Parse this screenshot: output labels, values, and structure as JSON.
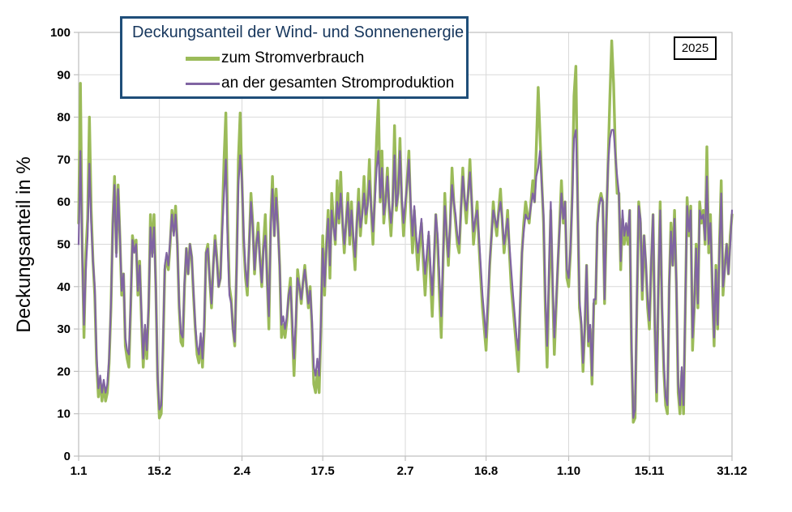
{
  "year_badge": "2025",
  "legend": {
    "title": "Deckungsanteil der Wind- und Sonnenenergie",
    "items": [
      {
        "label": "zum Stromverbrauch",
        "color": "#9BBB59"
      },
      {
        "label": "an der gesamten Stromproduktion",
        "color": "#8064A2"
      }
    ]
  },
  "axes": {
    "y_title": "Deckungsanteil in %",
    "y_ticks": [
      0,
      10,
      20,
      30,
      40,
      50,
      60,
      70,
      80,
      90,
      100
    ],
    "x_ticks": [
      {
        "day": 1,
        "label": "1.1"
      },
      {
        "day": 46,
        "label": "15.2"
      },
      {
        "day": 92,
        "label": "2.4"
      },
      {
        "day": 137,
        "label": "17.5"
      },
      {
        "day": 183,
        "label": "2.7"
      },
      {
        "day": 228,
        "label": "16.8"
      },
      {
        "day": 274,
        "label": "1.10"
      },
      {
        "day": 319,
        "label": "15.11"
      },
      {
        "day": 365,
        "label": "31.12"
      }
    ]
  },
  "colors": {
    "gridline": "#D9D9D9",
    "plot_border": "#BFBFBF",
    "tick": "#BFBFBF",
    "legend_border": "#1F4E79",
    "series_green": "#9BBB59",
    "series_purple": "#8064A2"
  },
  "chart_data": {
    "type": "line",
    "title": "Deckungsanteil der Wind- und Sonnenenergie",
    "ylabel": "Deckungsanteil in %",
    "ylim": [
      0,
      100
    ],
    "x_start_day": 1,
    "x_end_day": 365,
    "x_tick_labels": [
      "1.1",
      "15.2",
      "2.4",
      "17.5",
      "2.7",
      "16.8",
      "1.10",
      "15.11",
      "31.12"
    ],
    "grid": true,
    "legend_position": "top-left",
    "year": "2025",
    "series": [
      {
        "name": "zum Stromverbrauch",
        "color": "#9BBB59",
        "stroke_width": 3.4,
        "values": [
          55,
          88,
          50,
          28,
          48,
          56,
          80,
          58,
          46,
          38,
          22,
          14,
          18,
          13,
          17,
          13,
          15,
          22,
          35,
          55,
          66,
          48,
          64,
          52,
          38,
          43,
          26,
          23,
          21,
          35,
          52,
          49,
          51,
          38,
          46,
          32,
          21,
          30,
          23,
          35,
          57,
          48,
          57,
          40,
          18,
          9,
          10,
          25,
          44,
          47,
          44,
          50,
          58,
          53,
          59,
          50,
          35,
          27,
          26,
          40,
          49,
          43,
          50,
          47,
          38,
          30,
          24,
          22,
          28,
          21,
          30,
          48,
          50,
          42,
          35,
          45,
          52,
          47,
          40,
          42,
          55,
          70,
          81,
          55,
          40,
          37,
          30,
          26,
          45,
          70,
          81,
          65,
          50,
          42,
          38,
          50,
          62,
          55,
          43,
          50,
          55,
          47,
          40,
          50,
          57,
          42,
          30,
          55,
          66,
          52,
          63,
          55,
          45,
          28,
          31,
          28,
          32,
          38,
          42,
          30,
          19,
          30,
          44,
          40,
          36,
          41,
          45,
          40,
          35,
          40,
          30,
          17,
          15,
          20,
          15,
          30,
          52,
          38,
          50,
          58,
          42,
          62,
          55,
          50,
          65,
          55,
          67,
          55,
          48,
          55,
          62,
          50,
          60,
          50,
          44,
          55,
          63,
          52,
          58,
          66,
          55,
          60,
          70,
          58,
          50,
          62,
          75,
          84,
          60,
          72,
          55,
          60,
          68,
          58,
          52,
          60,
          78,
          58,
          62,
          75,
          60,
          52,
          58,
          65,
          72,
          58,
          48,
          58,
          50,
          44,
          50,
          55,
          46,
          38,
          46,
          52,
          42,
          33,
          45,
          57,
          50,
          38,
          28,
          45,
          62,
          52,
          45,
          55,
          68,
          60,
          55,
          50,
          48,
          58,
          68,
          60,
          55,
          62,
          70,
          60,
          50,
          55,
          60,
          50,
          42,
          35,
          30,
          25,
          35,
          45,
          52,
          60,
          55,
          52,
          58,
          63,
          55,
          48,
          52,
          58,
          48,
          40,
          35,
          30,
          25,
          20,
          35,
          48,
          55,
          60,
          57,
          55,
          60,
          65,
          60,
          73,
          87,
          76,
          65,
          55,
          35,
          21,
          40,
          58,
          40,
          24,
          35,
          45,
          55,
          65,
          55,
          60,
          42,
          40,
          48,
          62,
          85,
          92,
          60,
          35,
          31,
          20,
          30,
          45,
          26,
          30,
          17,
          36,
          36,
          55,
          60,
          62,
          60,
          36,
          55,
          70,
          85,
          98,
          88,
          72,
          62,
          62,
          44,
          56,
          50,
          54,
          50,
          58,
          25,
          8,
          9,
          35,
          60,
          55,
          37,
          52,
          45,
          35,
          30,
          45,
          57,
          30,
          13,
          40,
          60,
          35,
          20,
          12,
          10,
          40,
          55,
          45,
          58,
          40,
          15,
          10,
          20,
          10,
          35,
          61,
          52,
          59,
          25,
          35,
          50,
          35,
          60,
          55,
          58,
          50,
          73,
          48,
          57,
          40,
          26,
          45,
          30,
          50,
          65,
          38,
          45,
          50,
          43,
          52,
          57
        ]
      },
      {
        "name": "an der gesamten Stromproduktion",
        "color": "#8064A2",
        "stroke_width": 2.2,
        "values": [
          50,
          72,
          48,
          31,
          44,
          52,
          69,
          55,
          46,
          40,
          24,
          16,
          19,
          15,
          18,
          15,
          17,
          23,
          36,
          54,
          64,
          47,
          63,
          52,
          39,
          43,
          28,
          25,
          24,
          36,
          51,
          48,
          50,
          39,
          45,
          34,
          23,
          31,
          25,
          36,
          54,
          47,
          54,
          40,
          19,
          11,
          12,
          27,
          45,
          48,
          45,
          51,
          57,
          52,
          57,
          50,
          36,
          29,
          28,
          41,
          49,
          43,
          50,
          47,
          39,
          31,
          26,
          24,
          29,
          23,
          32,
          48,
          49,
          42,
          36,
          45,
          51,
          46,
          40,
          42,
          53,
          62,
          70,
          50,
          38,
          36,
          30,
          27,
          44,
          64,
          71,
          65,
          52,
          44,
          40,
          50,
          60,
          54,
          44,
          50,
          53,
          46,
          41,
          49,
          52,
          42,
          33,
          53,
          63,
          52,
          61,
          54,
          45,
          31,
          33,
          30,
          33,
          38,
          40,
          32,
          23,
          32,
          42,
          40,
          37,
          41,
          44,
          40,
          36,
          39,
          32,
          21,
          19,
          23,
          19,
          32,
          49,
          40,
          49,
          56,
          45,
          58,
          54,
          51,
          60,
          56,
          62,
          56,
          50,
          55,
          60,
          52,
          58,
          52,
          47,
          55,
          60,
          54,
          57,
          62,
          57,
          59,
          65,
          59,
          53,
          60,
          68,
          72,
          61,
          68,
          57,
          60,
          66,
          59,
          55,
          60,
          71,
          59,
          62,
          72,
          61,
          55,
          60,
          64,
          70,
          60,
          52,
          59,
          52,
          48,
          52,
          56,
          49,
          43,
          48,
          53,
          45,
          38,
          47,
          57,
          52,
          42,
          33,
          47,
          59,
          53,
          47,
          55,
          64,
          60,
          57,
          52,
          50,
          58,
          66,
          61,
          58,
          62,
          67,
          60,
          53,
          56,
          58,
          52,
          45,
          38,
          33,
          28,
          37,
          46,
          52,
          58,
          56,
          54,
          57,
          60,
          56,
          50,
          53,
          56,
          50,
          44,
          38,
          33,
          28,
          25,
          37,
          48,
          53,
          57,
          56,
          56,
          59,
          62,
          60,
          66,
          68,
          72,
          64,
          57,
          38,
          26,
          43,
          60,
          42,
          28,
          36,
          46,
          54,
          62,
          56,
          60,
          44,
          42,
          49,
          60,
          75,
          77,
          60,
          37,
          32,
          22,
          31,
          45,
          27,
          31,
          19,
          37,
          37,
          54,
          59,
          61,
          60,
          37,
          56,
          69,
          75,
          77,
          77,
          71,
          66,
          62,
          46,
          58,
          52,
          55,
          52,
          58,
          27,
          9,
          11,
          36,
          59,
          56,
          39,
          52,
          46,
          37,
          32,
          46,
          57,
          32,
          15,
          41,
          58,
          36,
          22,
          14,
          12,
          40,
          53,
          45,
          56,
          41,
          17,
          12,
          21,
          12,
          36,
          59,
          53,
          58,
          28,
          36,
          49,
          36,
          58,
          56,
          57,
          51,
          66,
          50,
          55,
          42,
          28,
          44,
          31,
          49,
          62,
          40,
          44,
          50,
          43,
          50,
          58
        ]
      }
    ]
  }
}
